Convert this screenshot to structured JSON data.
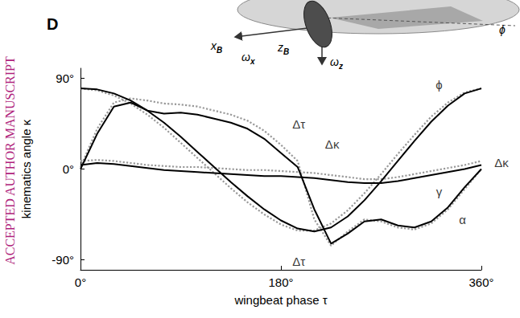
{
  "chart_data": {
    "type": "line",
    "panel": "D",
    "watermark": "ACCEPTED AUTHOR MANUSCRIPT",
    "x_label": "wingbeat phase τ",
    "y_label": "kinematics angle κ",
    "x": [
      0,
      15,
      30,
      45,
      60,
      75,
      90,
      105,
      120,
      135,
      150,
      165,
      180,
      195,
      210,
      225,
      240,
      255,
      270,
      285,
      300,
      315,
      330,
      345,
      360
    ],
    "series": [
      {
        "color": "#999999",
        "line_style": "dotted",
        "values": [
          80,
          78,
          73,
          65,
          54,
          41,
          26,
          11,
          -4,
          -19,
          -33,
          -45,
          -55,
          -61,
          -61,
          -54,
          -41,
          -24,
          -5,
          15,
          34,
          52,
          66,
          76,
          80
        ]
      },
      {
        "color": "#999999",
        "line_style": "dotted",
        "values": [
          2,
          40,
          66,
          70,
          68,
          65,
          64,
          62,
          58,
          54,
          48,
          38,
          24,
          8,
          -50,
          -76,
          -62,
          -50,
          -52,
          -58,
          -60,
          -54,
          -40,
          -20,
          0
        ]
      },
      {
        "color": "#999999",
        "line_style": "dotted",
        "values": [
          8,
          9,
          8,
          6,
          4,
          3,
          2,
          2,
          1,
          0,
          -1,
          -1,
          -2,
          -3,
          -4,
          -6,
          -8,
          -10,
          -10,
          -8,
          -5,
          -2,
          1,
          4,
          8
        ]
      },
      {
        "color": "#000000",
        "line_style": "solid",
        "values": [
          80,
          79,
          75,
          68,
          58,
          46,
          32,
          17,
          2,
          -13,
          -27,
          -40,
          -51,
          -59,
          -62,
          -58,
          -47,
          -31,
          -12,
          8,
          28,
          47,
          63,
          75,
          80
        ]
      },
      {
        "color": "#000000",
        "line_style": "solid",
        "values": [
          0,
          35,
          62,
          66,
          58,
          55,
          56,
          54,
          50,
          46,
          40,
          30,
          16,
          2,
          -40,
          -74,
          -64,
          -52,
          -50,
          -56,
          -58,
          -52,
          -38,
          -18,
          0
        ]
      },
      {
        "color": "#000000",
        "line_style": "solid",
        "values": [
          4,
          6,
          5,
          3,
          1,
          -1,
          -2,
          -3,
          -4,
          -5,
          -6,
          -7,
          -7,
          -8,
          -9,
          -11,
          -13,
          -14,
          -14,
          -12,
          -9,
          -6,
          -3,
          0,
          4
        ]
      }
    ],
    "xlim": [
      0,
      360
    ],
    "ylim": [
      -100,
      100
    ],
    "xticks": [
      {
        "value": 0,
        "label": "0°"
      },
      {
        "value": 180,
        "label": "180°"
      },
      {
        "value": 360,
        "label": "360°"
      }
    ],
    "yticks": [
      {
        "value": -90,
        "label": "-90°"
      },
      {
        "value": 0,
        "label": "0°"
      },
      {
        "value": 90,
        "label": "90°"
      }
    ],
    "grid": false,
    "annotations": [
      {
        "text": "ϕ",
        "x": 322,
        "y": 84
      },
      {
        "text": "γ",
        "x": 322,
        "y": -22
      },
      {
        "text": "α",
        "x": 343,
        "y": -50
      },
      {
        "text": "Δτ",
        "x": 196,
        "y": 45
      },
      {
        "text": "Δκ",
        "x": 226,
        "y": 25
      },
      {
        "text": "Δτ",
        "x": 196,
        "y": -92
      },
      {
        "text": "Δκ",
        "x": 378,
        "y": 6
      }
    ],
    "inset": {
      "labels": [
        {
          "text": "x",
          "sub": "B"
        },
        {
          "text": "ω",
          "sub": "x"
        },
        {
          "text": "z",
          "sub": "B"
        },
        {
          "text": "ω",
          "sub": "z"
        },
        {
          "text": "ϕ"
        }
      ]
    }
  }
}
